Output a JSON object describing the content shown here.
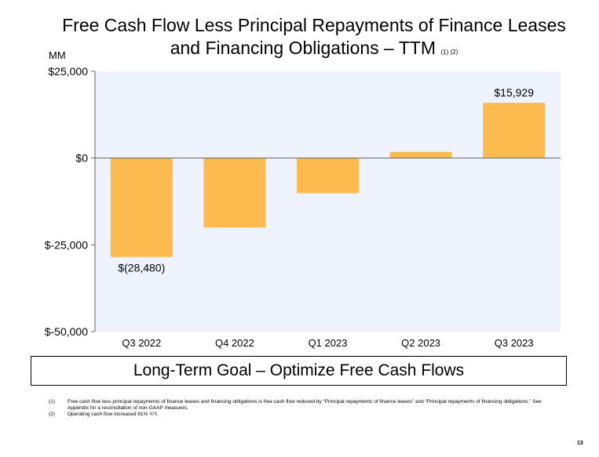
{
  "title": {
    "line1": "Free Cash Flow Less Principal Repayments of Finance Leases",
    "line2": "and Financing Obligations – TTM",
    "notes": "(1) (2)"
  },
  "colors": {
    "bar": "#FDBA4F",
    "plot_bg": "#EEF3FD",
    "axis": "#666666"
  },
  "chart_data": {
    "type": "bar",
    "ylabel": "MM",
    "categories": [
      "Q3 2022",
      "Q4 2022",
      "Q1 2023",
      "Q2 2023",
      "Q3 2023"
    ],
    "values": [
      -28480,
      -20000,
      -10100,
      1800,
      15929
    ],
    "data_labels": [
      "$(28,480)",
      "",
      "",
      "",
      "$15,929"
    ],
    "ylim": [
      -50000,
      25000
    ],
    "yticks": [
      25000,
      0,
      -25000,
      -50000
    ],
    "ytick_labels": [
      "$25,000",
      "$0",
      "$-25,000",
      "$-50,000"
    ],
    "grid": false
  },
  "goal": "Long-Term Goal – Optimize Free Cash Flows",
  "footnotes": [
    {
      "num": "(1)",
      "text": "Free cash flow less principal repayments of finance leases and financing obligations is free cash flow reduced by “Principal repayments of finance leases” and “Principal repayments of financing obligations.” See Appendix for a reconciliation of non-GAAP measures."
    },
    {
      "num": "(2)",
      "text": "Operating cash flow increased 81% Y/Y."
    }
  ],
  "page_number": "13"
}
